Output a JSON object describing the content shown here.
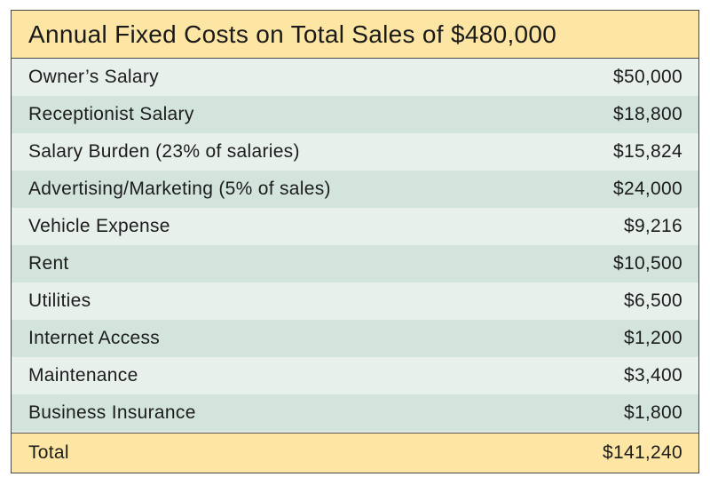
{
  "table": {
    "title": "Annual Fixed Costs on Total Sales of $480,000",
    "rows": [
      {
        "label": "Owner’s Salary",
        "amount": "$50,000"
      },
      {
        "label": "Receptionist Salary",
        "amount": "$18,800"
      },
      {
        "label": "Salary Burden (23% of salaries)",
        "amount": "$15,824"
      },
      {
        "label": "Advertising/Marketing (5% of sales)",
        "amount": "$24,000"
      },
      {
        "label": "Vehicle Expense",
        "amount": "$9,216"
      },
      {
        "label": "Rent",
        "amount": "$10,500"
      },
      {
        "label": "Utilities",
        "amount": "$6,500"
      },
      {
        "label": "Internet Access",
        "amount": "$1,200"
      },
      {
        "label": "Maintenance",
        "amount": "$3,400"
      },
      {
        "label": "Business Insurance",
        "amount": "$1,800"
      }
    ],
    "total": {
      "label": "Total",
      "amount": "$141,240"
    }
  },
  "colors": {
    "header_bg": "#fde6a3",
    "row_light": "#e8f0ec",
    "row_dark": "#d3e4dd",
    "border": "#4a4a4a"
  }
}
